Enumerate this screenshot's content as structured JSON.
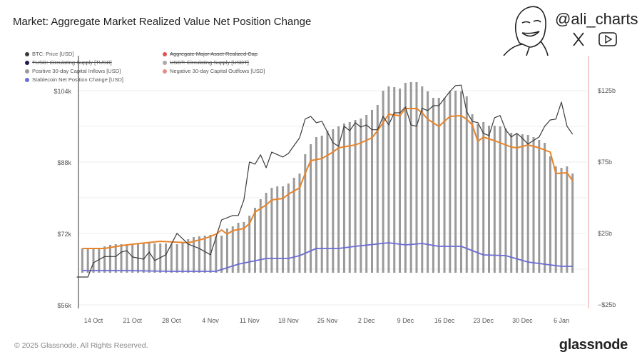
{
  "header": {
    "title": "Market: Aggregate Market Realized Value Net Position Change"
  },
  "branding": {
    "handle": "@ali_charts",
    "icons": [
      "cartoon-face-icon",
      "x-logo-icon",
      "youtube-icon"
    ]
  },
  "legend": [
    {
      "label": "BTC: Price [USD]",
      "color": "#3a3a3a",
      "struck": false
    },
    {
      "label": "Aggregate Major Asset Realized Cap",
      "color": "#e05252",
      "struck": true
    },
    {
      "label": "TUSD: Circulating Supply [TUSD]",
      "color": "#1d1d4d",
      "struck": true
    },
    {
      "label": "USDT: Circulating Supply [USDT]",
      "color": "#aaaaaa",
      "struck": true
    },
    {
      "label": "Positive 30-day Capital Inflows [USD]",
      "color": "#999999",
      "struck": false
    },
    {
      "label": "Negative 30-day Capital Outflows [USD]",
      "color": "#e88a8a",
      "struck": false
    },
    {
      "label": "Stablecoin Net Position Change [USD]",
      "color": "#6b6bd6",
      "struck": false
    }
  ],
  "footer": {
    "copyright": "© 2025 Glassnode. All Rights Reserved.",
    "brand": "glassnode"
  },
  "chart_data": {
    "type": "bar+line",
    "title": "Market: Aggregate Market Realized Value Net Position Change",
    "x_ticks": [
      "14 Oct",
      "21 Oct",
      "28 Oct",
      "4 Nov",
      "11 Nov",
      "18 Nov",
      "25 Nov",
      "2 Dec",
      "9 Dec",
      "16 Dec",
      "23 Dec",
      "30 Dec",
      "6 Jan"
    ],
    "x_tick_dates": [
      "2024-10-14",
      "2024-10-21",
      "2024-10-28",
      "2024-11-04",
      "2024-11-11",
      "2024-11-18",
      "2024-11-25",
      "2024-12-02",
      "2024-12-09",
      "2024-12-16",
      "2024-12-23",
      "2024-12-30",
      "2025-01-06"
    ],
    "y_left": {
      "ticks": [
        "$104k",
        "$88k",
        "$72k",
        "$56k"
      ],
      "tick_values": [
        104,
        88,
        72,
        56
      ],
      "range": [
        56,
        104
      ],
      "unit": "k USD"
    },
    "y_right": {
      "ticks": [
        "$125b",
        "$75b",
        "$25b",
        "−$25b"
      ],
      "tick_values": [
        125,
        75,
        25,
        -25
      ],
      "range": [
        -25,
        125
      ],
      "unit": "b USD"
    },
    "grid": true,
    "colors": {
      "bars": "#9a9a9a",
      "orange_line": "#e8832a",
      "btc": "#3a3a3a",
      "stablecoin": "#6b6bd6",
      "right_axis": "#f0b0b0"
    },
    "bars": {
      "name": "Positive 30-day Capital Inflows [USD]",
      "axis": "right",
      "points": [
        [
          "2024-10-12",
          14.5
        ],
        [
          "2024-10-13",
          14.5
        ],
        [
          "2024-10-14",
          14.5
        ],
        [
          "2024-10-15",
          15
        ],
        [
          "2024-10-16",
          16
        ],
        [
          "2024-10-17",
          17
        ],
        [
          "2024-10-18",
          17.5
        ],
        [
          "2024-10-19",
          17.5
        ],
        [
          "2024-10-20",
          17.5
        ],
        [
          "2024-10-21",
          17.5
        ],
        [
          "2024-10-22",
          18
        ],
        [
          "2024-10-23",
          18
        ],
        [
          "2024-10-24",
          18.5
        ],
        [
          "2024-10-25",
          18
        ],
        [
          "2024-10-26",
          18
        ],
        [
          "2024-10-27",
          18
        ],
        [
          "2024-10-28",
          17.5
        ],
        [
          "2024-10-29",
          17.5
        ],
        [
          "2024-10-30",
          19
        ],
        [
          "2024-10-31",
          21
        ],
        [
          "2024-11-01",
          22.5
        ],
        [
          "2024-11-02",
          23
        ],
        [
          "2024-11-03",
          23.5
        ],
        [
          "2024-11-04",
          24
        ],
        [
          "2024-11-05",
          23
        ],
        [
          "2024-11-06",
          23.5
        ],
        [
          "2024-11-07",
          28.5
        ],
        [
          "2024-11-08",
          30
        ],
        [
          "2024-11-09",
          32.5
        ],
        [
          "2024-11-10",
          33
        ],
        [
          "2024-11-11",
          37.5
        ],
        [
          "2024-11-12",
          43
        ],
        [
          "2024-11-13",
          49
        ],
        [
          "2024-11-14",
          53.5
        ],
        [
          "2024-11-15",
          57
        ],
        [
          "2024-11-16",
          58
        ],
        [
          "2024-11-17",
          58
        ],
        [
          "2024-11-18",
          60
        ],
        [
          "2024-11-19",
          64
        ],
        [
          "2024-11-20",
          67
        ],
        [
          "2024-11-21",
          80.5
        ],
        [
          "2024-11-22",
          87.5
        ],
        [
          "2024-11-23",
          92.5
        ],
        [
          "2024-11-24",
          93.5
        ],
        [
          "2024-11-25",
          97
        ],
        [
          "2024-11-26",
          98
        ],
        [
          "2024-11-27",
          100
        ],
        [
          "2024-11-28",
          102
        ],
        [
          "2024-11-29",
          103
        ],
        [
          "2024-11-30",
          104.5
        ],
        [
          "2024-12-01",
          105.5
        ],
        [
          "2024-12-02",
          108
        ],
        [
          "2024-12-03",
          111.5
        ],
        [
          "2024-12-04",
          115
        ],
        [
          "2024-12-05",
          125
        ],
        [
          "2024-12-06",
          128
        ],
        [
          "2024-12-07",
          127.5
        ],
        [
          "2024-12-08",
          126.5
        ],
        [
          "2024-12-09",
          130.5
        ],
        [
          "2024-12-10",
          131
        ],
        [
          "2024-12-11",
          131
        ],
        [
          "2024-12-12",
          128
        ],
        [
          "2024-12-13",
          124.5
        ],
        [
          "2024-12-14",
          120
        ],
        [
          "2024-12-15",
          120
        ],
        [
          "2024-12-16",
          120
        ],
        [
          "2024-12-17",
          124.5
        ],
        [
          "2024-12-18",
          125
        ],
        [
          "2024-12-19",
          124.5
        ],
        [
          "2024-12-20",
          121
        ],
        [
          "2024-12-21",
          108.5
        ],
        [
          "2024-12-22",
          101.5
        ],
        [
          "2024-12-23",
          103
        ],
        [
          "2024-12-24",
          100.5
        ],
        [
          "2024-12-25",
          100.5
        ],
        [
          "2024-12-26",
          100
        ],
        [
          "2024-12-27",
          98.5
        ],
        [
          "2024-12-28",
          95.5
        ],
        [
          "2024-12-29",
          95
        ],
        [
          "2024-12-30",
          94.5
        ],
        [
          "2024-12-31",
          94
        ],
        [
          "2025-01-01",
          92.5
        ],
        [
          "2025-01-02",
          90.5
        ],
        [
          "2025-01-03",
          88.5
        ],
        [
          "2025-01-04",
          79
        ],
        [
          "2025-01-05",
          72
        ],
        [
          "2025-01-06",
          71
        ],
        [
          "2025-01-07",
          72
        ],
        [
          "2025-01-08",
          67
        ]
      ]
    },
    "orange_line": {
      "axis": "right",
      "points": [
        [
          "2024-10-12",
          14.5
        ],
        [
          "2024-10-16",
          14.5
        ],
        [
          "2024-10-19",
          16.5
        ],
        [
          "2024-10-21",
          17.5
        ],
        [
          "2024-10-26",
          19.5
        ],
        [
          "2024-10-31",
          18.5
        ],
        [
          "2024-11-03",
          21.5
        ],
        [
          "2024-11-05",
          24.5
        ],
        [
          "2024-11-06",
          27.5
        ],
        [
          "2024-11-07",
          24.5
        ],
        [
          "2024-11-08",
          27
        ],
        [
          "2024-11-10",
          28.5
        ],
        [
          "2024-11-11",
          32
        ],
        [
          "2024-11-12",
          40
        ],
        [
          "2024-11-14",
          45
        ],
        [
          "2024-11-15",
          48.5
        ],
        [
          "2024-11-17",
          49.5
        ],
        [
          "2024-11-18",
          52.5
        ],
        [
          "2024-11-20",
          57
        ],
        [
          "2024-11-21",
          67
        ],
        [
          "2024-11-22",
          76
        ],
        [
          "2024-11-24",
          77.5
        ],
        [
          "2024-11-26",
          82
        ],
        [
          "2024-11-27",
          85
        ],
        [
          "2024-11-30",
          87
        ],
        [
          "2024-12-01",
          88.5
        ],
        [
          "2024-12-03",
          92
        ],
        [
          "2024-12-04",
          97
        ],
        [
          "2024-12-06",
          108.5
        ],
        [
          "2024-12-08",
          107.5
        ],
        [
          "2024-12-09",
          112.5
        ],
        [
          "2024-12-11",
          112.5
        ],
        [
          "2024-12-12",
          109.5
        ],
        [
          "2024-12-13",
          105
        ],
        [
          "2024-12-15",
          100
        ],
        [
          "2024-12-17",
          107
        ],
        [
          "2024-12-19",
          107.5
        ],
        [
          "2024-12-20",
          105
        ],
        [
          "2024-12-21",
          101
        ],
        [
          "2024-12-22",
          89.5
        ],
        [
          "2024-12-23",
          92.5
        ],
        [
          "2024-12-25",
          90
        ],
        [
          "2024-12-26",
          88.5
        ],
        [
          "2024-12-28",
          85.5
        ],
        [
          "2024-12-29",
          85
        ],
        [
          "2024-12-31",
          87
        ],
        [
          "2025-01-02",
          85
        ],
        [
          "2025-01-04",
          82
        ],
        [
          "2025-01-05",
          67
        ],
        [
          "2025-01-07",
          67.5
        ],
        [
          "2025-01-08",
          62
        ]
      ]
    },
    "btc_price": {
      "name": "BTC: Price [USD]",
      "axis": "left",
      "points": [
        [
          "2024-10-11",
          62.4
        ],
        [
          "2024-10-13",
          62.4
        ],
        [
          "2024-10-14",
          65.6
        ],
        [
          "2024-10-16",
          67
        ],
        [
          "2024-10-18",
          67
        ],
        [
          "2024-10-19",
          68
        ],
        [
          "2024-10-20",
          68.3
        ],
        [
          "2024-10-21",
          66.9
        ],
        [
          "2024-10-23",
          66.4
        ],
        [
          "2024-10-24",
          68
        ],
        [
          "2024-10-25",
          66.1
        ],
        [
          "2024-10-27",
          67.4
        ],
        [
          "2024-10-29",
          72.2
        ],
        [
          "2024-10-31",
          69.8
        ],
        [
          "2024-11-02",
          68.8
        ],
        [
          "2024-11-04",
          67.4
        ],
        [
          "2024-11-06",
          75.2
        ],
        [
          "2024-11-08",
          76.2
        ],
        [
          "2024-11-09",
          76.2
        ],
        [
          "2024-11-10",
          79.7
        ],
        [
          "2024-11-11",
          88.2
        ],
        [
          "2024-11-12",
          87.7
        ],
        [
          "2024-11-13",
          89.8
        ],
        [
          "2024-11-14",
          86.9
        ],
        [
          "2024-11-15",
          90.4
        ],
        [
          "2024-11-17",
          89.3
        ],
        [
          "2024-11-18",
          90.1
        ],
        [
          "2024-11-20",
          93.6
        ],
        [
          "2024-11-21",
          97.8
        ],
        [
          "2024-11-22",
          98.4
        ],
        [
          "2024-11-23",
          97
        ],
        [
          "2024-11-24",
          97.3
        ],
        [
          "2024-11-26",
          92.5
        ],
        [
          "2024-11-27",
          91.7
        ],
        [
          "2024-11-28",
          96.2
        ],
        [
          "2024-11-29",
          95.2
        ],
        [
          "2024-11-30",
          97
        ],
        [
          "2024-12-01",
          96
        ],
        [
          "2024-12-02",
          96.5
        ],
        [
          "2024-12-03",
          95.4
        ],
        [
          "2024-12-04",
          95.4
        ],
        [
          "2024-12-05",
          98.4
        ],
        [
          "2024-12-06",
          96.5
        ],
        [
          "2024-12-07",
          99.2
        ],
        [
          "2024-12-08",
          99.2
        ],
        [
          "2024-12-09",
          100.5
        ],
        [
          "2024-12-10",
          96.5
        ],
        [
          "2024-12-11",
          96.2
        ],
        [
          "2024-12-12",
          100.2
        ],
        [
          "2024-12-13",
          99.7
        ],
        [
          "2024-12-14",
          100.8
        ],
        [
          "2024-12-15",
          100.8
        ],
        [
          "2024-12-17",
          104
        ],
        [
          "2024-12-18",
          105.3
        ],
        [
          "2024-12-19",
          105.4
        ],
        [
          "2024-12-20",
          99.4
        ],
        [
          "2024-12-21",
          97.3
        ],
        [
          "2024-12-22",
          97
        ],
        [
          "2024-12-23",
          94.6
        ],
        [
          "2024-12-24",
          94.1
        ],
        [
          "2024-12-25",
          98.1
        ],
        [
          "2024-12-26",
          98.6
        ],
        [
          "2024-12-27",
          95.4
        ],
        [
          "2024-12-28",
          93.8
        ],
        [
          "2024-12-29",
          94.6
        ],
        [
          "2024-12-30",
          93.5
        ],
        [
          "2024-12-31",
          92.2
        ],
        [
          "2025-01-01",
          93
        ],
        [
          "2025-01-02",
          93.8
        ],
        [
          "2025-01-03",
          96.2
        ],
        [
          "2025-01-04",
          97.6
        ],
        [
          "2025-01-05",
          97.8
        ],
        [
          "2025-01-06",
          101.6
        ],
        [
          "2025-01-07",
          96.2
        ],
        [
          "2025-01-08",
          94.4
        ]
      ]
    },
    "stablecoin": {
      "name": "Stablecoin Net Position Change [USD]",
      "axis": "right",
      "points": [
        [
          "2024-10-12",
          -1
        ],
        [
          "2024-10-20",
          -1
        ],
        [
          "2024-10-28",
          -1.5
        ],
        [
          "2024-11-05",
          -1.5
        ],
        [
          "2024-11-09",
          3.5
        ],
        [
          "2024-11-14",
          7.5
        ],
        [
          "2024-11-18",
          7.5
        ],
        [
          "2024-11-20",
          9.5
        ],
        [
          "2024-11-23",
          14.5
        ],
        [
          "2024-11-27",
          14.5
        ],
        [
          "2024-11-30",
          16
        ],
        [
          "2024-12-06",
          18.5
        ],
        [
          "2024-12-09",
          17
        ],
        [
          "2024-12-12",
          18
        ],
        [
          "2024-12-15",
          16
        ],
        [
          "2024-12-19",
          16
        ],
        [
          "2024-12-23",
          10
        ],
        [
          "2024-12-27",
          9.5
        ],
        [
          "2024-12-31",
          5
        ],
        [
          "2025-01-06",
          2
        ],
        [
          "2025-01-08",
          2
        ]
      ]
    }
  }
}
